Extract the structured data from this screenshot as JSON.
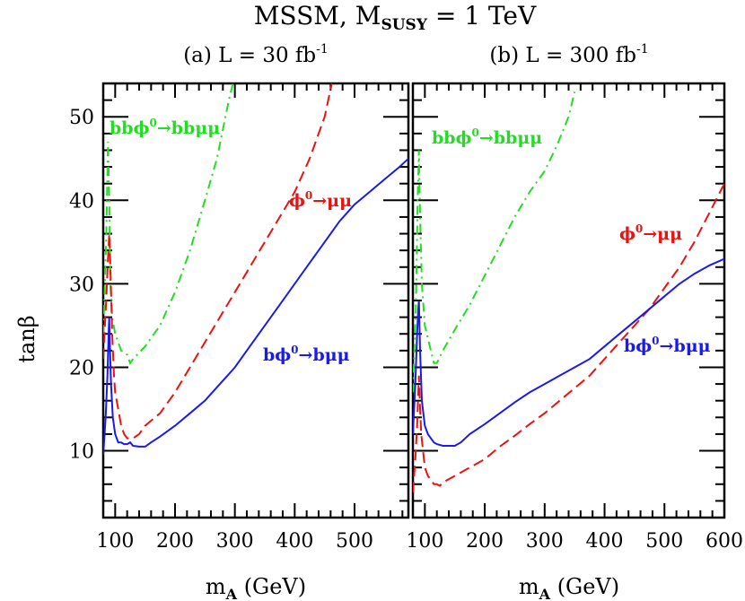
{
  "title": {
    "main": "MSSM, M",
    "sub": "SUSY",
    "rest": " = 1 TeV"
  },
  "colors": {
    "green": "#22dd22",
    "red": "#ee1111",
    "blue": "#1a1aee"
  },
  "chart_data": [
    {
      "type": "line",
      "panel_title": {
        "main": "(a) L = 30 fb",
        "sup": "-1"
      },
      "xlabel": {
        "main": "m",
        "sub": "A",
        "rest": " (GeV)"
      },
      "ylabel": "tanβ",
      "xlim": [
        80,
        590
      ],
      "ylim": [
        2,
        54
      ],
      "xticks": [
        100,
        200,
        300,
        400,
        500
      ],
      "yticks": [
        10,
        20,
        30,
        40,
        50
      ],
      "grid": false,
      "series": [
        {
          "key": "bbphi_bbmumu",
          "style": "dash-dot",
          "color": "#22dd22",
          "label": {
            "pre": "bbϕ",
            "sup": "0",
            "post": "→bbμμ"
          },
          "points": [
            [
              80,
              24
            ],
            [
              85,
              35
            ],
            [
              88,
              47
            ],
            [
              90,
              40
            ],
            [
              92,
              30
            ],
            [
              95,
              26
            ],
            [
              100,
              24
            ],
            [
              110,
              22
            ],
            [
              120,
              21.5
            ],
            [
              125,
              20.5
            ],
            [
              130,
              21
            ],
            [
              150,
              22.5
            ],
            [
              175,
              25
            ],
            [
              200,
              29
            ],
            [
              225,
              34
            ],
            [
              250,
              40
            ],
            [
              270,
              45
            ],
            [
              290,
              52
            ],
            [
              300,
              55
            ]
          ]
        },
        {
          "key": "phi_mumu",
          "style": "dashed",
          "color": "#ee1111",
          "label": {
            "pre": "ϕ",
            "sup": "0",
            "post": "→μμ"
          },
          "points": [
            [
              80,
              21
            ],
            [
              85,
              28
            ],
            [
              88,
              33
            ],
            [
              90,
              36
            ],
            [
              92,
              32
            ],
            [
              95,
              24
            ],
            [
              98,
              19
            ],
            [
              100,
              17
            ],
            [
              105,
              15
            ],
            [
              110,
              13
            ],
            [
              115,
              12
            ],
            [
              120,
              11.5
            ],
            [
              130,
              11.5
            ],
            [
              140,
              12
            ],
            [
              150,
              13
            ],
            [
              175,
              14.5
            ],
            [
              200,
              17
            ],
            [
              225,
              20
            ],
            [
              250,
              23
            ],
            [
              275,
              26
            ],
            [
              300,
              29
            ],
            [
              325,
              32
            ],
            [
              350,
              35
            ],
            [
              375,
              38
            ],
            [
              400,
              41
            ],
            [
              425,
              45
            ],
            [
              450,
              50
            ],
            [
              465,
              55
            ]
          ]
        },
        {
          "key": "bphi_bmumu",
          "style": "solid",
          "color": "#1a1aee",
          "label": {
            "pre": "bϕ",
            "sup": "0",
            "post": "→bμμ"
          },
          "points": [
            [
              80,
              9.5
            ],
            [
              84,
              14
            ],
            [
              87,
              19
            ],
            [
              89,
              24
            ],
            [
              90,
              26
            ],
            [
              91,
              23
            ],
            [
              93,
              18
            ],
            [
              96,
              14
            ],
            [
              100,
              12
            ],
            [
              105,
              11
            ],
            [
              110,
              11
            ],
            [
              115,
              10.8
            ],
            [
              120,
              10.8
            ],
            [
              125,
              11
            ],
            [
              130,
              10.6
            ],
            [
              140,
              10.5
            ],
            [
              150,
              10.5
            ],
            [
              160,
              11
            ],
            [
              175,
              11.7
            ],
            [
              200,
              13
            ],
            [
              225,
              14.5
            ],
            [
              250,
              16
            ],
            [
              275,
              18
            ],
            [
              300,
              20
            ],
            [
              325,
              22.5
            ],
            [
              350,
              25
            ],
            [
              375,
              27.5
            ],
            [
              400,
              30
            ],
            [
              425,
              32.5
            ],
            [
              450,
              35
            ],
            [
              475,
              37.5
            ],
            [
              500,
              39.5
            ],
            [
              525,
              41
            ],
            [
              550,
              42.5
            ],
            [
              575,
              44
            ],
            [
              590,
              45
            ]
          ]
        }
      ]
    },
    {
      "type": "line",
      "panel_title": {
        "main": "(b) L = 300 fb",
        "sup": "-1"
      },
      "xlabel": {
        "main": "m",
        "sub": "A",
        "rest": " (GeV)"
      },
      "ylabel": "",
      "xlim": [
        80,
        600
      ],
      "ylim": [
        2,
        54
      ],
      "xticks": [
        100,
        200,
        300,
        400,
        500,
        600
      ],
      "yticks": [
        10,
        20,
        30,
        40,
        50
      ],
      "grid": false,
      "series": [
        {
          "key": "bbphi_bbmumu",
          "style": "dash-dot",
          "color": "#22dd22",
          "label": {
            "pre": "bbϕ",
            "sup": "0",
            "post": "→bbμμ"
          },
          "points": [
            [
              80,
              17
            ],
            [
              85,
              27
            ],
            [
              88,
              40
            ],
            [
              90,
              46
            ],
            [
              92,
              38
            ],
            [
              95,
              30
            ],
            [
              100,
              25
            ],
            [
              110,
              22
            ],
            [
              115,
              20.5
            ],
            [
              120,
              20.5
            ],
            [
              130,
              22
            ],
            [
              150,
              24.5
            ],
            [
              175,
              27.5
            ],
            [
              200,
              31
            ],
            [
              225,
              34.5
            ],
            [
              250,
              38
            ],
            [
              275,
              41
            ],
            [
              300,
              43.5
            ],
            [
              320,
              46.5
            ],
            [
              340,
              50
            ],
            [
              350,
              53
            ]
          ]
        },
        {
          "key": "phi_mumu",
          "style": "dashed",
          "color": "#ee1111",
          "label": {
            "pre": "ϕ",
            "sup": "0",
            "post": "→μμ"
          },
          "points": [
            [
              80,
              5
            ],
            [
              84,
              9
            ],
            [
              87,
              13
            ],
            [
              89,
              17
            ],
            [
              90,
              19
            ],
            [
              92,
              15
            ],
            [
              94,
              12
            ],
            [
              97,
              10
            ],
            [
              100,
              8
            ],
            [
              105,
              7
            ],
            [
              110,
              6.5
            ],
            [
              115,
              6
            ],
            [
              120,
              6
            ],
            [
              125,
              5.8
            ],
            [
              130,
              6.2
            ],
            [
              150,
              7
            ],
            [
              175,
              8
            ],
            [
              200,
              9
            ],
            [
              225,
              10.5
            ],
            [
              250,
              11.8
            ],
            [
              275,
              13.2
            ],
            [
              300,
              14.5
            ],
            [
              325,
              16
            ],
            [
              350,
              17.5
            ],
            [
              375,
              19
            ],
            [
              400,
              21
            ],
            [
              425,
              23
            ],
            [
              450,
              25
            ],
            [
              475,
              27
            ],
            [
              500,
              29.5
            ],
            [
              525,
              32
            ],
            [
              550,
              35
            ],
            [
              575,
              38.5
            ],
            [
              600,
              42
            ]
          ]
        },
        {
          "key": "bphi_bmumu",
          "style": "solid",
          "color": "#1a1aee",
          "label": {
            "pre": "bϕ",
            "sup": "0",
            "post": "→bμμ"
          },
          "points": [
            [
              80,
              12
            ],
            [
              84,
              18
            ],
            [
              87,
              24
            ],
            [
              89,
              27
            ],
            [
              90,
              28
            ],
            [
              92,
              22
            ],
            [
              95,
              16
            ],
            [
              100,
              13
            ],
            [
              105,
              12
            ],
            [
              110,
              11.5
            ],
            [
              115,
              11
            ],
            [
              120,
              10.8
            ],
            [
              130,
              10.6
            ],
            [
              150,
              10.6
            ],
            [
              160,
              11
            ],
            [
              175,
              12
            ],
            [
              200,
              13.2
            ],
            [
              225,
              14.5
            ],
            [
              250,
              15.8
            ],
            [
              275,
              17
            ],
            [
              300,
              18
            ],
            [
              325,
              19
            ],
            [
              350,
              20
            ],
            [
              375,
              21
            ],
            [
              400,
              22.5
            ],
            [
              425,
              24
            ],
            [
              450,
              25.5
            ],
            [
              475,
              27
            ],
            [
              500,
              28.5
            ],
            [
              525,
              30
            ],
            [
              550,
              31.2
            ],
            [
              575,
              32.2
            ],
            [
              600,
              33
            ]
          ]
        }
      ]
    }
  ]
}
